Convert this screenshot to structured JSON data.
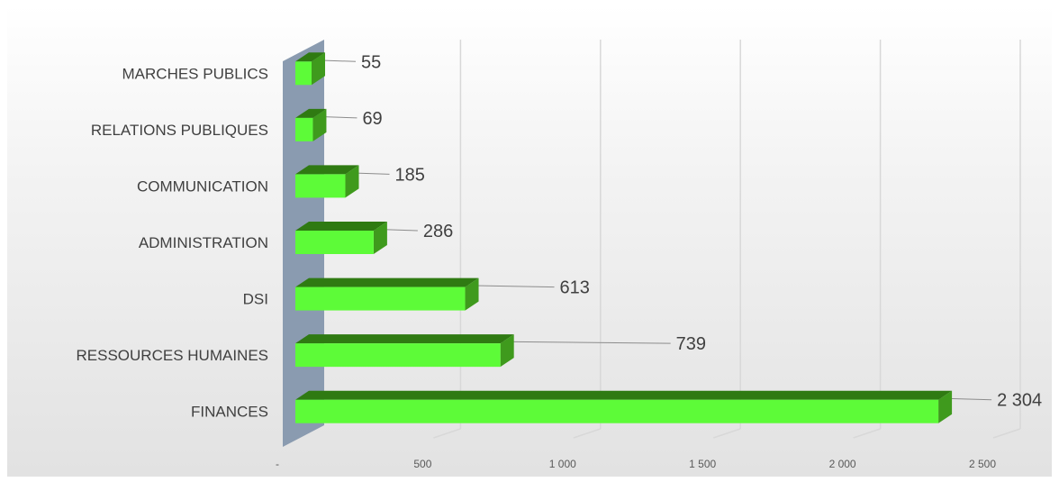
{
  "chart_data": {
    "type": "bar",
    "orientation": "horizontal",
    "style": "3d",
    "categories": [
      "FINANCES",
      "RESSOURCES HUMAINES",
      "DSI",
      "ADMINISTRATION",
      "COMMUNICATION",
      "RELATIONS PUBLIQUES",
      "MARCHES PUBLICS"
    ],
    "values": [
      2304,
      739,
      613,
      286,
      185,
      69,
      55
    ],
    "value_labels": [
      "2 304",
      "739",
      "613",
      "286",
      "185",
      "69",
      "55"
    ],
    "xlim": [
      0,
      2500
    ],
    "x_ticks": [
      0,
      500,
      1000,
      1500,
      2000,
      2500
    ],
    "x_tick_labels": [
      "-",
      "500",
      "1 000",
      "1 500",
      "2 000",
      "2 500"
    ],
    "title": "",
    "xlabel": "",
    "ylabel": "",
    "grid": true,
    "legend": "none",
    "colors": {
      "bar_front": "#5dfb38",
      "bar_top": "#2f7a12",
      "bar_side": "#3f9a1d",
      "wall": "#8a9bb0",
      "grid": "#d8d8d8",
      "leader": "#8c8c8c"
    }
  }
}
